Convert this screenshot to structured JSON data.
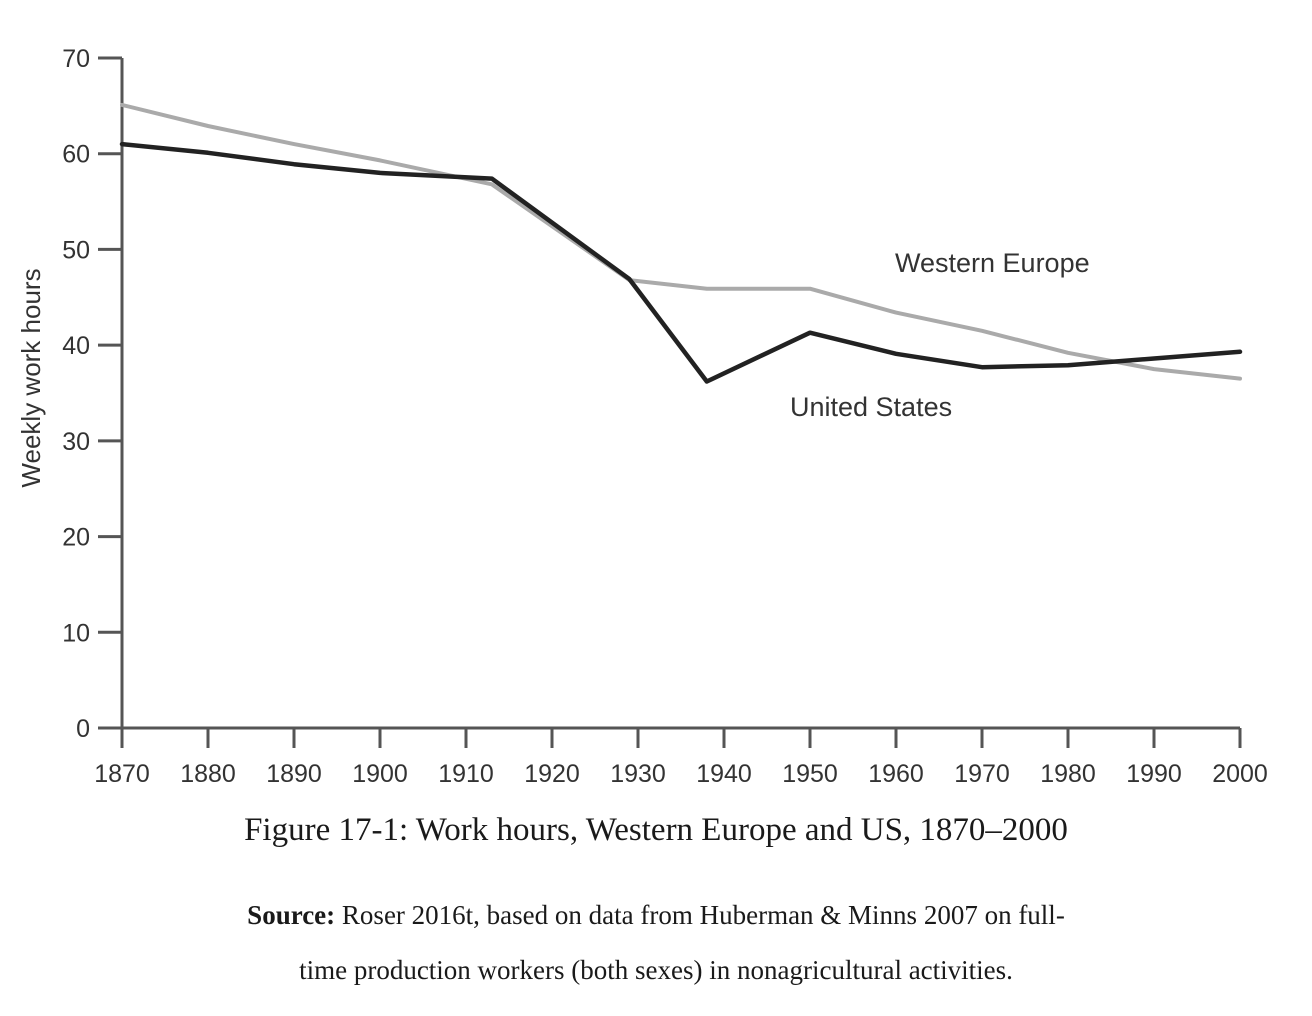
{
  "chart_data": {
    "type": "line",
    "ylabel": "Weekly work hours",
    "xlabel": "",
    "ylim": [
      0,
      70
    ],
    "xlim": [
      1870,
      2000
    ],
    "yticks": [
      0,
      10,
      20,
      30,
      40,
      50,
      60,
      70
    ],
    "xticks": [
      1870,
      1880,
      1890,
      1900,
      1910,
      1920,
      1930,
      1940,
      1950,
      1960,
      1970,
      1980,
      1990,
      2000
    ],
    "grid": false,
    "legend": "inline labels",
    "series": [
      {
        "name": "Western Europe",
        "color": "#aaaaaa",
        "x": [
          1870,
          1880,
          1890,
          1900,
          1913,
          1929,
          1938,
          1950,
          1960,
          1970,
          1980,
          1990,
          2000
        ],
        "y": [
          65.1,
          62.9,
          61.0,
          59.3,
          56.8,
          46.8,
          45.9,
          45.9,
          43.4,
          41.5,
          39.2,
          37.5,
          36.5
        ]
      },
      {
        "name": "United States",
        "color": "#222222",
        "x": [
          1870,
          1880,
          1890,
          1900,
          1913,
          1929,
          1938,
          1950,
          1960,
          1970,
          1980,
          1990,
          2000
        ],
        "y": [
          61.0,
          60.1,
          58.9,
          58.0,
          57.4,
          46.9,
          36.2,
          41.3,
          39.1,
          37.7,
          37.9,
          38.6,
          39.3
        ]
      }
    ]
  },
  "caption": "Figure 17-1: Work hours, Western Europe and US, 1870–2000",
  "source": {
    "label": "Source:",
    "line1": "Roser 2016t, based on data from Huberman & Minns 2007 on full-",
    "line2": "time production workers (both sexes) in nonagricultural activities."
  }
}
